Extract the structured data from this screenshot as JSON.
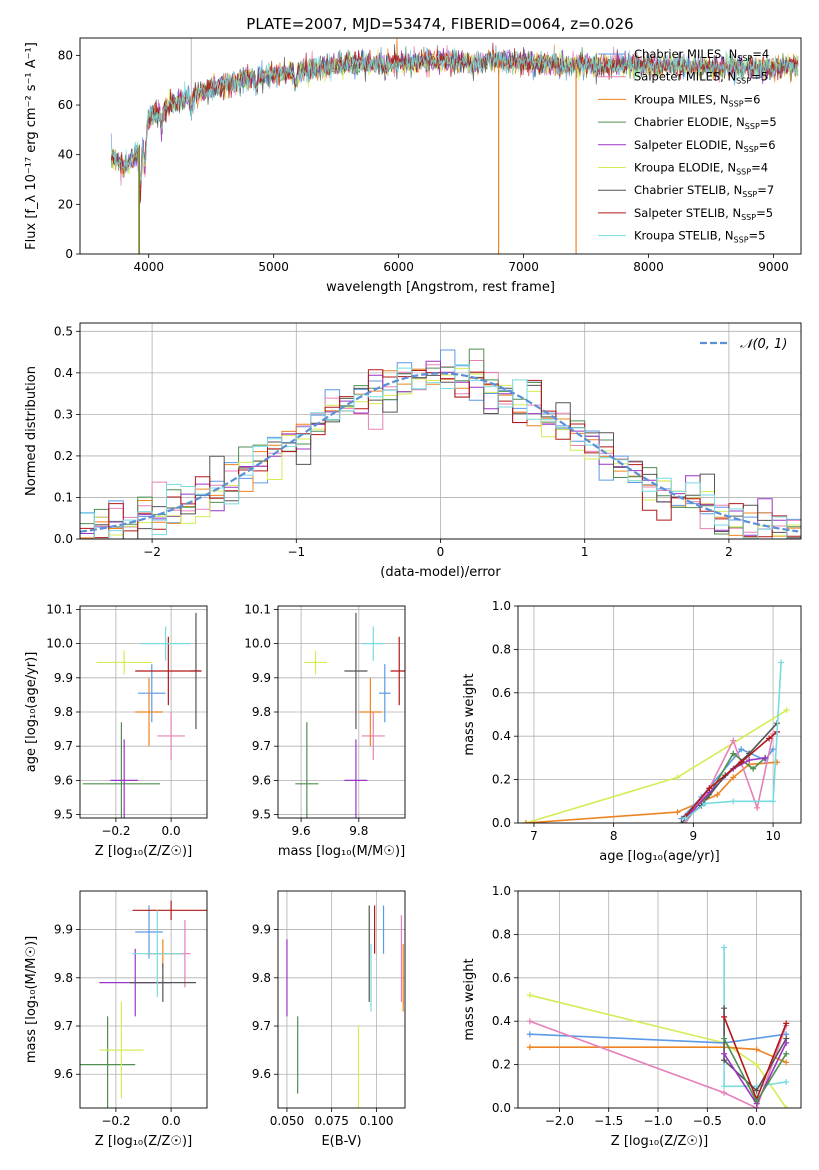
{
  "title": "PLATE=2007, MJD=53474, FIBERID=0064, z=0.026",
  "colors": {
    "chabrier_miles": "#5c9ae6",
    "salpeter_miles": "#e680b8",
    "kroupa_miles": "#ee8421",
    "chabrier_elodie": "#4f8f50",
    "salpeter_elodie": "#9b35c4",
    "kroupa_elodie": "#d6ec55",
    "chabrier_stelib": "#555555",
    "salpeter_stelib": "#b31818",
    "kroupa_stelib": "#77dbe0",
    "grid": "#b0b0b0",
    "normal_curve": "#5b8fd8"
  },
  "series_keys": [
    "chabrier_miles",
    "salpeter_miles",
    "kroupa_miles",
    "chabrier_elodie",
    "salpeter_elodie",
    "kroupa_elodie",
    "chabrier_stelib",
    "salpeter_stelib",
    "kroupa_stelib"
  ],
  "chart_data": [
    {
      "id": "spectrum",
      "type": "line",
      "xlabel": "wavelength [Angstrom, rest frame]",
      "ylabel": "Flux [f_λ 10⁻¹⁷ erg cm⁻² s⁻¹ A⁻¹]",
      "xlim": [
        3450,
        9220
      ],
      "ylim": [
        0,
        87
      ],
      "xticks": [
        4000,
        5000,
        6000,
        7000,
        8000,
        9000
      ],
      "yticks": [
        0,
        20,
        40,
        60,
        80
      ],
      "grid": false,
      "legend_position": "top-right",
      "legend": [
        {
          "key": "chabrier_miles",
          "label": "Chabrier MILES, N",
          "sub": "SSP",
          "value": "=4"
        },
        {
          "key": "salpeter_miles",
          "label": "Salpeter MILES, N",
          "sub": "SSP",
          "value": "=5"
        },
        {
          "key": "kroupa_miles",
          "label": "Kroupa MILES, N",
          "sub": "SSP",
          "value": "=6"
        },
        {
          "key": "chabrier_elodie",
          "label": "Chabrier ELODIE, N",
          "sub": "SSP",
          "value": "=5"
        },
        {
          "key": "salpeter_elodie",
          "label": "Salpeter ELODIE, N",
          "sub": "SSP",
          "value": "=6"
        },
        {
          "key": "kroupa_elodie",
          "label": "Kroupa ELODIE, N",
          "sub": "SSP",
          "value": "=4"
        },
        {
          "key": "chabrier_stelib",
          "label": "Chabrier STELIB, N",
          "sub": "SSP",
          "value": "=7"
        },
        {
          "key": "salpeter_stelib",
          "label": "Salpeter STELIB, N",
          "sub": "SSP",
          "value": "=5"
        },
        {
          "key": "kroupa_stelib",
          "label": "Kroupa STELIB, N",
          "sub": "SSP",
          "value": "=5"
        }
      ],
      "continuum": [
        [
          3700,
          40
        ],
        [
          3800,
          35
        ],
        [
          3900,
          40
        ],
        [
          3950,
          48
        ],
        [
          4000,
          55
        ],
        [
          4200,
          61
        ],
        [
          4400,
          65
        ],
        [
          4600,
          68
        ],
        [
          4800,
          71
        ],
        [
          5000,
          72
        ],
        [
          5200,
          74
        ],
        [
          5500,
          76
        ],
        [
          5800,
          77
        ],
        [
          6000,
          77
        ],
        [
          6300,
          78
        ],
        [
          6600,
          77
        ],
        [
          6800,
          78
        ],
        [
          7000,
          77
        ],
        [
          7400,
          76
        ],
        [
          7800,
          76
        ],
        [
          8200,
          76
        ],
        [
          8600,
          75
        ],
        [
          9000,
          75
        ],
        [
          9200,
          76
        ]
      ],
      "drops": [
        {
          "key": "kroupa_miles",
          "x": 3920
        },
        {
          "key": "chabrier_elodie",
          "x": 3925
        },
        {
          "key": "kroupa_miles",
          "x": 6800
        },
        {
          "key": "kroupa_miles",
          "x": 7420
        }
      ]
    },
    {
      "id": "residuals",
      "type": "histogram",
      "xlabel": "(data-model)/error",
      "ylabel": "Normed distribution",
      "xlim": [
        -2.5,
        2.5
      ],
      "ylim": [
        0,
        0.52
      ],
      "xticks": [
        -2,
        -1,
        0,
        1,
        2
      ],
      "yticks": [
        0.0,
        0.1,
        0.2,
        0.3,
        0.4,
        0.5
      ],
      "grid": true,
      "bin_width": 0.1,
      "legend": {
        "label": "𝒩(0, 1)"
      },
      "legend_position": "top-right"
    },
    {
      "id": "age_vs_z",
      "type": "scatter",
      "xlabel": "Z [log₁₀(Z/Z☉)]",
      "ylabel": "age  [log₁₀(age/yr)]",
      "xlim": [
        -0.33,
        0.13
      ],
      "ylim": [
        9.49,
        10.11
      ],
      "xticks": [
        -0.2,
        0.0
      ],
      "yticks": [
        9.5,
        9.6,
        9.7,
        9.8,
        9.9,
        10.0,
        10.1
      ],
      "grid": true,
      "points": [
        {
          "key": "chabrier_miles",
          "x": -0.07,
          "y": 9.855,
          "xerr": 0.05,
          "yerr": 0.085
        },
        {
          "key": "salpeter_miles",
          "x": 0.0,
          "y": 9.73,
          "xerr": 0.05,
          "yerr": 0.07
        },
        {
          "key": "kroupa_miles",
          "x": -0.08,
          "y": 9.8,
          "xerr": 0.05,
          "yerr": 0.1
        },
        {
          "key": "chabrier_elodie",
          "x": -0.18,
          "y": 9.59,
          "xerr": 0.14,
          "yerr": 0.18
        },
        {
          "key": "salpeter_elodie",
          "x": -0.17,
          "y": 9.6,
          "xerr": 0.05,
          "yerr": 0.12
        },
        {
          "key": "kroupa_elodie",
          "x": -0.17,
          "y": 9.945,
          "xerr": 0.1,
          "yerr": 0.035
        },
        {
          "key": "chabrier_stelib",
          "x": 0.09,
          "y": 9.92,
          "xerr": 0.02,
          "yerr": 0.17
        },
        {
          "key": "salpeter_stelib",
          "x": -0.01,
          "y": 9.92,
          "xerr": 0.12,
          "yerr": 0.1
        },
        {
          "key": "kroupa_stelib",
          "x": -0.02,
          "y": 10.0,
          "xerr": 0.09,
          "yerr": 0.05
        }
      ]
    },
    {
      "id": "age_vs_mass",
      "type": "scatter",
      "xlabel": "mass [log₁₀(M/M☉)]",
      "ylabel": "",
      "xlim": [
        9.52,
        9.96
      ],
      "ylim": [
        9.49,
        10.11
      ],
      "xticks": [
        9.6,
        9.8
      ],
      "yticks": [
        9.5,
        9.6,
        9.7,
        9.8,
        9.9,
        10.0,
        10.1
      ],
      "grid": true,
      "points": [
        {
          "key": "chabrier_miles",
          "x": 9.89,
          "y": 9.855,
          "xerr": 0.02,
          "yerr": 0.085
        },
        {
          "key": "salpeter_miles",
          "x": 9.85,
          "y": 9.73,
          "xerr": 0.04,
          "yerr": 0.07
        },
        {
          "key": "kroupa_miles",
          "x": 9.84,
          "y": 9.8,
          "xerr": 0.04,
          "yerr": 0.1
        },
        {
          "key": "chabrier_elodie",
          "x": 9.62,
          "y": 9.59,
          "xerr": 0.04,
          "yerr": 0.18
        },
        {
          "key": "salpeter_elodie",
          "x": 9.79,
          "y": 9.6,
          "xerr": 0.04,
          "yerr": 0.12
        },
        {
          "key": "kroupa_elodie",
          "x": 9.65,
          "y": 9.945,
          "xerr": 0.04,
          "yerr": 0.035
        },
        {
          "key": "chabrier_stelib",
          "x": 9.79,
          "y": 9.92,
          "xerr": 0.04,
          "yerr": 0.17
        },
        {
          "key": "salpeter_stelib",
          "x": 9.94,
          "y": 9.92,
          "xerr": 0.03,
          "yerr": 0.1
        },
        {
          "key": "kroupa_stelib",
          "x": 9.85,
          "y": 10.0,
          "xerr": 0.04,
          "yerr": 0.05
        }
      ]
    },
    {
      "id": "massweight_vs_age",
      "type": "line",
      "xlabel": "age  [log₁₀(age/yr)]",
      "ylabel": "mass weight",
      "xlim": [
        6.8,
        10.35
      ],
      "ylim": [
        0,
        1.0
      ],
      "xticks": [
        7,
        8,
        9,
        10
      ],
      "yticks": [
        0.0,
        0.2,
        0.4,
        0.6,
        0.8,
        1.0
      ],
      "grid": true,
      "series": [
        {
          "key": "kroupa_elodie",
          "points": [
            [
              6.9,
              0.0
            ],
            [
              8.8,
              0.21
            ],
            [
              10.17,
              0.52
            ]
          ]
        },
        {
          "key": "kroupa_miles",
          "points": [
            [
              6.9,
              0.0
            ],
            [
              8.8,
              0.05
            ],
            [
              9.3,
              0.13
            ],
            [
              9.5,
              0.21
            ],
            [
              9.7,
              0.27
            ],
            [
              10.05,
              0.28
            ]
          ]
        },
        {
          "key": "chabrier_miles",
          "points": [
            [
              8.85,
              0.02
            ],
            [
              9.1,
              0.12
            ],
            [
              9.6,
              0.34
            ],
            [
              9.9,
              0.29
            ],
            [
              10.0,
              0.34
            ]
          ]
        },
        {
          "key": "salpeter_miles",
          "points": [
            [
              8.9,
              0.0
            ],
            [
              9.2,
              0.16
            ],
            [
              9.5,
              0.38
            ],
            [
              9.8,
              0.07
            ],
            [
              10.0,
              0.41
            ]
          ]
        },
        {
          "key": "chabrier_elodie",
          "points": [
            [
              8.9,
              0.03
            ],
            [
              9.2,
              0.13
            ],
            [
              9.5,
              0.32
            ],
            [
              9.75,
              0.25
            ],
            [
              9.9,
              0.3
            ]
          ]
        },
        {
          "key": "salpeter_elodie",
          "points": [
            [
              8.9,
              0.02
            ],
            [
              9.2,
              0.14
            ],
            [
              9.5,
              0.25
            ],
            [
              9.7,
              0.29
            ],
            [
              9.9,
              0.3
            ]
          ]
        },
        {
          "key": "chabrier_stelib",
          "points": [
            [
              8.85,
              0.0
            ],
            [
              9.1,
              0.08
            ],
            [
              9.4,
              0.22
            ],
            [
              9.7,
              0.32
            ],
            [
              10.05,
              0.46
            ]
          ]
        },
        {
          "key": "salpeter_stelib",
          "points": [
            [
              8.9,
              0.03
            ],
            [
              9.2,
              0.16
            ],
            [
              9.6,
              0.28
            ],
            [
              9.95,
              0.39
            ],
            [
              10.05,
              0.42
            ]
          ]
        },
        {
          "key": "kroupa_stelib",
          "points": [
            [
              8.9,
              0.02
            ],
            [
              9.15,
              0.09
            ],
            [
              9.5,
              0.1
            ],
            [
              10.0,
              0.1
            ],
            [
              10.1,
              0.74
            ]
          ]
        }
      ]
    },
    {
      "id": "mass_vs_z",
      "type": "scatter",
      "xlabel": "Z [log₁₀(Z/Z☉)]",
      "ylabel": "mass [log₁₀(M/M☉)]",
      "xlim": [
        -0.33,
        0.13
      ],
      "ylim": [
        9.53,
        9.98
      ],
      "xticks": [
        -0.2,
        0.0
      ],
      "yticks": [
        9.6,
        9.7,
        9.8,
        9.9
      ],
      "grid": true,
      "points": [
        {
          "key": "chabrier_miles",
          "x": -0.08,
          "y": 9.895,
          "xerr": 0.05,
          "yerr": 0.055
        },
        {
          "key": "salpeter_miles",
          "x": 0.05,
          "y": 9.85,
          "xerr": 0.02,
          "yerr": 0.07
        },
        {
          "key": "kroupa_miles",
          "x": -0.03,
          "y": 9.85,
          "xerr": 0.06,
          "yerr": 0.03
        },
        {
          "key": "chabrier_elodie",
          "x": -0.23,
          "y": 9.62,
          "xerr": 0.1,
          "yerr": 0.1
        },
        {
          "key": "salpeter_elodie",
          "x": -0.13,
          "y": 9.79,
          "xerr": 0.13,
          "yerr": 0.07
        },
        {
          "key": "kroupa_elodie",
          "x": -0.18,
          "y": 9.65,
          "xerr": 0.08,
          "yerr": 0.1
        },
        {
          "key": "chabrier_stelib",
          "x": -0.03,
          "y": 9.79,
          "xerr": 0.12,
          "yerr": 0.04
        },
        {
          "key": "salpeter_stelib",
          "x": 0.0,
          "y": 9.94,
          "xerr": 0.14,
          "yerr": 0.02
        },
        {
          "key": "kroupa_stelib",
          "x": -0.05,
          "y": 9.85,
          "xerr": 0.09,
          "yerr": 0.09
        }
      ]
    },
    {
      "id": "mass_vs_ebv",
      "type": "scatter",
      "xlabel": "E(B-V)",
      "ylabel": "",
      "xlim": [
        0.045,
        0.116
      ],
      "ylim": [
        9.53,
        9.98
      ],
      "xticks": [
        0.05,
        0.075,
        0.1
      ],
      "yticks": [
        9.6,
        9.7,
        9.8,
        9.9
      ],
      "grid": true,
      "points": [
        {
          "key": "chabrier_miles",
          "x": 0.104,
          "y": 9.9,
          "xerr": 0,
          "yerr": 0.05
        },
        {
          "key": "salpeter_miles",
          "x": 0.114,
          "y": 9.84,
          "xerr": 0,
          "yerr": 0.09
        },
        {
          "key": "kroupa_miles",
          "x": 0.115,
          "y": 9.8,
          "xerr": 0,
          "yerr": 0.07
        },
        {
          "key": "chabrier_elodie",
          "x": 0.056,
          "y": 9.64,
          "xerr": 0,
          "yerr": 0.08
        },
        {
          "key": "salpeter_elodie",
          "x": 0.05,
          "y": 9.8,
          "xerr": 0,
          "yerr": 0.08
        },
        {
          "key": "kroupa_elodie",
          "x": 0.09,
          "y": 9.6,
          "xerr": 0,
          "yerr": 0.1
        },
        {
          "key": "chabrier_stelib",
          "x": 0.096,
          "y": 9.85,
          "xerr": 0,
          "yerr": 0.1
        },
        {
          "key": "salpeter_stelib",
          "x": 0.099,
          "y": 9.9,
          "xerr": 0,
          "yerr": 0.05
        },
        {
          "key": "kroupa_stelib",
          "x": 0.097,
          "y": 9.8,
          "xerr": 0,
          "yerr": 0.07
        }
      ]
    },
    {
      "id": "massweight_vs_z",
      "type": "line",
      "xlabel": "Z [log₁₀(Z/Z☉)]",
      "ylabel": "mass weight",
      "xlim": [
        -2.42,
        0.45
      ],
      "ylim": [
        0,
        1.0
      ],
      "xticks": [
        -2.0,
        -1.5,
        -1.0,
        -0.5,
        0.0
      ],
      "yticks": [
        0.0,
        0.2,
        0.4,
        0.6,
        0.8,
        1.0
      ],
      "grid": true,
      "series": [
        {
          "key": "kroupa_elodie",
          "points": [
            [
              -2.3,
              0.52
            ],
            [
              -0.33,
              0.3
            ],
            [
              0.0,
              0.2
            ],
            [
              0.3,
              0.0
            ]
          ]
        },
        {
          "key": "chabrier_miles",
          "points": [
            [
              -2.3,
              0.34
            ],
            [
              -0.33,
              0.3
            ],
            [
              0.3,
              0.34
            ]
          ]
        },
        {
          "key": "kroupa_miles",
          "points": [
            [
              -2.3,
              0.28
            ],
            [
              -0.33,
              0.28
            ],
            [
              0.0,
              0.27
            ],
            [
              0.3,
              0.21
            ]
          ]
        },
        {
          "key": "salpeter_miles",
          "points": [
            [
              -2.3,
              0.4
            ],
            [
              -0.33,
              0.07
            ],
            [
              0.0,
              0.0
            ],
            [
              0.3,
              0.38
            ]
          ]
        },
        {
          "key": "kroupa_stelib",
          "points": [
            [
              -0.33,
              0.74
            ],
            [
              -0.33,
              0.1
            ],
            [
              0.0,
              0.1
            ],
            [
              0.3,
              0.12
            ]
          ]
        },
        {
          "key": "chabrier_stelib",
          "points": [
            [
              -0.33,
              0.46
            ],
            [
              -0.33,
              0.22
            ],
            [
              0.0,
              0.08
            ],
            [
              0.3,
              0.32
            ]
          ]
        },
        {
          "key": "salpeter_stelib",
          "points": [
            [
              -0.33,
              0.42
            ],
            [
              0.0,
              0.04
            ],
            [
              0.3,
              0.39
            ]
          ]
        },
        {
          "key": "salpeter_elodie",
          "points": [
            [
              -0.33,
              0.25
            ],
            [
              0.0,
              0.02
            ],
            [
              0.3,
              0.3
            ]
          ]
        },
        {
          "key": "chabrier_elodie",
          "points": [
            [
              -0.33,
              0.32
            ],
            [
              0.0,
              0.03
            ],
            [
              0.3,
              0.25
            ]
          ]
        }
      ]
    }
  ]
}
